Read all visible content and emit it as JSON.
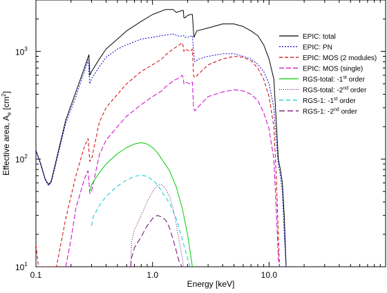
{
  "chart_data": {
    "type": "line",
    "xlabel": "Energy [keV]",
    "ylabel": "Effective area, A",
    "ylabel_sub": "e",
    "ylabel_unit": " [cm",
    "ylabel_unit_sup": "2",
    "ylabel_unit_close": "]",
    "xscale": "log",
    "yscale": "log",
    "xlim": [
      0.1,
      100
    ],
    "ylim": [
      10,
      3000
    ],
    "x_ticks": [
      {
        "value": 0.1,
        "label": "0.1"
      },
      {
        "value": 1.0,
        "label": "1.0"
      },
      {
        "value": 10.0,
        "label": "10.0"
      }
    ],
    "y_ticks": [
      {
        "value": 10,
        "base": "10",
        "exp": "1"
      },
      {
        "value": 100,
        "base": "10",
        "exp": "2"
      },
      {
        "value": 1000,
        "base": "10",
        "exp": "3"
      }
    ],
    "legend_position": "top-right",
    "series": [
      {
        "name": "EPIC: total",
        "color": "#000000",
        "dash": "",
        "x": [
          0.1,
          0.11,
          0.12,
          0.128,
          0.135,
          0.15,
          0.18,
          0.22,
          0.26,
          0.285,
          0.29,
          0.3,
          0.35,
          0.4,
          0.5,
          0.6,
          0.8,
          1.0,
          1.3,
          1.5,
          1.6,
          1.7,
          1.8,
          1.84,
          1.86,
          1.9,
          2.0,
          2.1,
          2.2,
          2.25,
          2.27,
          2.3,
          2.4,
          3.0,
          4.0,
          5.0,
          6.0,
          7.0,
          8.0,
          9.0,
          10.0,
          11.0,
          11.6,
          12.0,
          12.5,
          13.0,
          13.5,
          14.0
        ],
        "y": [
          120,
          90,
          65,
          58,
          62,
          100,
          230,
          420,
          700,
          930,
          600,
          650,
          850,
          1050,
          1300,
          1550,
          1900,
          2200,
          2450,
          2450,
          2300,
          2350,
          2400,
          2400,
          2050,
          2050,
          2150,
          2200,
          2200,
          1500,
          1350,
          1400,
          1550,
          1650,
          1800,
          1800,
          1700,
          1550,
          1400,
          1150,
          850,
          550,
          200,
          100,
          80,
          60,
          30,
          10
        ]
      },
      {
        "name": "EPIC: PN",
        "color": "#0000cc",
        "dash": "2,2",
        "x": [
          0.1,
          0.11,
          0.12,
          0.128,
          0.135,
          0.15,
          0.18,
          0.22,
          0.26,
          0.28,
          0.29,
          0.3,
          0.35,
          0.4,
          0.5,
          0.6,
          0.8,
          1.0,
          1.3,
          1.5,
          1.7,
          1.8,
          1.86,
          1.9,
          2.0,
          2.2,
          2.25,
          2.3,
          2.5,
          3.0,
          4.0,
          5.0,
          6.0,
          7.0,
          8.0,
          9.0,
          10.0,
          11.0,
          11.5,
          12.0,
          12.5,
          13.0,
          13.5,
          14.0
        ],
        "y": [
          120,
          88,
          64,
          57,
          60,
          95,
          215,
          380,
          650,
          830,
          500,
          560,
          720,
          880,
          1050,
          1150,
          1300,
          1350,
          1420,
          1450,
          1380,
          1400,
          1400,
          1350,
          1350,
          1400,
          1000,
          800,
          850,
          900,
          950,
          950,
          900,
          850,
          760,
          650,
          500,
          300,
          150,
          90,
          70,
          50,
          20,
          10
        ]
      },
      {
        "name": "EPIC: MOS (2 modules)",
        "color": "#cc0000",
        "dash": "5,3",
        "x": [
          0.1,
          0.105,
          0.15,
          0.18,
          0.22,
          0.26,
          0.28,
          0.29,
          0.3,
          0.35,
          0.4,
          0.5,
          0.6,
          0.8,
          1.0,
          1.2,
          1.3,
          1.5,
          1.7,
          1.8,
          1.84,
          1.86,
          1.9,
          2.1,
          2.2,
          2.25,
          2.3,
          2.5,
          3.0,
          4.0,
          5.0,
          6.0,
          7.0,
          8.0,
          9.0,
          10.0,
          11.0,
          11.6,
          12.0,
          12.3
        ],
        "y": [
          16,
          10,
          10,
          28,
          70,
          130,
          155,
          95,
          100,
          220,
          300,
          400,
          500,
          650,
          750,
          850,
          930,
          1050,
          1150,
          1200,
          1100,
          1000,
          1050,
          1000,
          1050,
          600,
          570,
          620,
          750,
          850,
          900,
          880,
          820,
          700,
          550,
          380,
          200,
          60,
          20,
          10
        ]
      },
      {
        "name": "EPIC: MOS (single)",
        "color": "#cc00cc",
        "dash": "7,3",
        "x": [
          0.18,
          0.2,
          0.22,
          0.26,
          0.28,
          0.29,
          0.3,
          0.35,
          0.4,
          0.5,
          0.6,
          0.8,
          1.0,
          1.2,
          1.3,
          1.5,
          1.7,
          1.8,
          1.84,
          1.86,
          1.9,
          2.1,
          2.2,
          2.25,
          2.3,
          2.5,
          3.0,
          4.0,
          5.0,
          6.0,
          7.0,
          8.0,
          9.0,
          10.0,
          11.0,
          11.6,
          12.0,
          12.3
        ],
        "y": [
          10,
          18,
          35,
          65,
          78,
          48,
          50,
          110,
          150,
          200,
          250,
          320,
          380,
          430,
          470,
          530,
          570,
          600,
          560,
          500,
          520,
          500,
          520,
          300,
          280,
          310,
          380,
          420,
          440,
          430,
          400,
          350,
          270,
          190,
          100,
          30,
          12,
          10
        ]
      },
      {
        "name": "RGS-total: -1",
        "name_sup": "st",
        "name_tail": " order",
        "color": "#00cc00",
        "dash": "",
        "x": [
          0.29,
          0.3,
          0.35,
          0.4,
          0.5,
          0.6,
          0.7,
          0.8,
          0.9,
          1.0,
          1.1,
          1.2,
          1.4,
          1.6,
          1.8,
          2.0,
          2.1,
          2.2
        ],
        "y": [
          50,
          58,
          75,
          90,
          112,
          128,
          138,
          142,
          138,
          128,
          115,
          100,
          78,
          55,
          35,
          20,
          14,
          10
        ]
      },
      {
        "name": "RGS-total: -2",
        "name_sup": "nd",
        "name_tail": " order",
        "color": "#660066",
        "dash": "1,2",
        "x": [
          0.65,
          0.66,
          0.7,
          0.8,
          0.9,
          1.0,
          1.1,
          1.2,
          1.3,
          1.4,
          1.5,
          1.6,
          1.7,
          1.8,
          1.85,
          1.9
        ],
        "y": [
          10,
          17,
          22,
          30,
          40,
          50,
          57,
          58,
          53,
          45,
          35,
          25,
          17,
          12,
          10,
          10
        ]
      },
      {
        "name": "RGS-1: -1",
        "name_sup": "st",
        "name_tail": " order",
        "color": "#00cccc",
        "dash": "6,4",
        "x": [
          0.3,
          0.31,
          0.35,
          0.4,
          0.5,
          0.6,
          0.7,
          0.8,
          0.9,
          1.0,
          1.1,
          1.2,
          1.4,
          1.6,
          1.8,
          2.0,
          2.1,
          2.2
        ],
        "y": [
          24,
          29,
          37,
          45,
          56,
          64,
          69,
          71,
          69,
          64,
          58,
          50,
          39,
          28,
          18,
          12,
          10,
          10
        ]
      },
      {
        "name": "RGS-1: -2",
        "name_sup": "nd",
        "name_tail": " order",
        "color": "#660066",
        "dash": "8,4",
        "x": [
          0.65,
          0.66,
          0.7,
          0.8,
          0.9,
          1.0,
          1.1,
          1.2,
          1.3,
          1.4,
          1.5,
          1.6,
          1.7,
          1.8,
          1.85,
          1.9
        ],
        "y": [
          10,
          12,
          15,
          19,
          24,
          28,
          30,
          29,
          27,
          23,
          18,
          14,
          11,
          10,
          10,
          10
        ]
      }
    ]
  }
}
